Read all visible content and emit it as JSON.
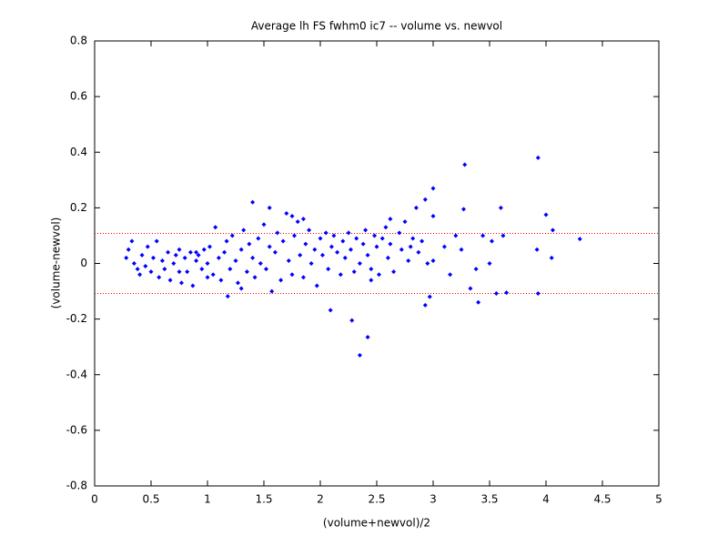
{
  "chart_data": {
    "type": "scatter",
    "title": "Average lh FS fwhm0 ic7 -- volume vs. newvol",
    "x_label": "(volume+newvol)/2",
    "y_label": "(volume-newvol)",
    "color": "#0000ff",
    "xlim": [
      0,
      5
    ],
    "xticks": [
      0,
      0.5,
      1,
      1.5,
      2,
      2.5,
      3,
      3.5,
      4,
      4.5,
      5
    ],
    "ylim": [
      -0.8,
      0.8
    ],
    "yticks": [
      -0.8,
      -0.6,
      -0.4,
      -0.2,
      0,
      0.2,
      0.4,
      0.6,
      0.8
    ],
    "reference_lines": [
      0.108,
      -0.108
    ],
    "reference_color": "#ff0000",
    "x": [
      3.28,
      3.93,
      2.35,
      2.42,
      2.28,
      2.09,
      3.0,
      2.93,
      3.27,
      3.6,
      4.0,
      4.06,
      4.3,
      3.92,
      4.05,
      3.93,
      3.65,
      3.56,
      3.4,
      3.33,
      2.93,
      2.97,
      1.18,
      3.0,
      2.85,
      2.62,
      3.44,
      3.52,
      3.62,
      3.1,
      3.2,
      3.25,
      2.95,
      3.0,
      3.15,
      3.38,
      3.5,
      2.8,
      0.28,
      0.3,
      0.33,
      0.35,
      0.38,
      0.4,
      0.42,
      0.45,
      0.47,
      0.5,
      0.52,
      0.55,
      0.57,
      0.6,
      0.62,
      0.65,
      0.67,
      0.7,
      0.72,
      0.75,
      0.77,
      0.8,
      0.82,
      0.85,
      0.87,
      0.9,
      0.92,
      0.95,
      0.97,
      1.0,
      1.02,
      1.05,
      1.07,
      1.1,
      1.12,
      1.15,
      1.17,
      1.2,
      1.22,
      1.25,
      1.27,
      1.3,
      1.32,
      1.35,
      1.37,
      1.4,
      1.42,
      1.45,
      1.47,
      1.5,
      1.52,
      1.55,
      1.57,
      1.6,
      1.62,
      1.65,
      1.67,
      1.7,
      1.72,
      1.75,
      1.77,
      1.8,
      1.82,
      1.85,
      1.87,
      1.9,
      1.92,
      1.95,
      1.97,
      2.0,
      2.02,
      2.05,
      2.07,
      2.1,
      2.12,
      2.15,
      2.18,
      2.2,
      2.22,
      2.25,
      2.27,
      2.3,
      2.32,
      2.35,
      2.38,
      2.4,
      2.42,
      2.45,
      2.48,
      2.5,
      2.52,
      2.55,
      2.58,
      2.6,
      2.62,
      2.65,
      2.7,
      2.72,
      2.75,
      2.78,
      2.82,
      2.87,
      2.9,
      1.4,
      1.55,
      1.75,
      2.45,
      0.75,
      1.0,
      0.9,
      1.3,
      1.85
    ],
    "y": [
      0.355,
      0.38,
      -0.33,
      -0.265,
      -0.205,
      -0.168,
      0.27,
      0.23,
      0.195,
      0.2,
      0.175,
      0.12,
      0.088,
      0.05,
      0.02,
      -0.108,
      -0.105,
      -0.108,
      -0.14,
      -0.09,
      -0.15,
      -0.12,
      -0.118,
      0.17,
      0.2,
      0.16,
      0.1,
      0.08,
      0.1,
      0.06,
      0.1,
      0.05,
      0.0,
      0.01,
      -0.04,
      -0.02,
      0.0,
      0.06,
      0.02,
      0.05,
      0.08,
      0.0,
      -0.02,
      -0.04,
      0.03,
      -0.01,
      0.06,
      -0.03,
      0.02,
      0.08,
      -0.05,
      0.01,
      -0.02,
      0.04,
      -0.06,
      0.0,
      0.03,
      0.05,
      -0.07,
      0.02,
      -0.03,
      0.04,
      -0.08,
      0.01,
      0.03,
      -0.02,
      0.05,
      0.0,
      0.06,
      -0.04,
      0.13,
      0.02,
      -0.06,
      0.04,
      0.08,
      -0.02,
      0.1,
      0.01,
      -0.07,
      0.05,
      0.12,
      -0.03,
      0.07,
      0.02,
      -0.05,
      0.09,
      0.0,
      0.14,
      -0.02,
      0.06,
      -0.1,
      0.04,
      0.11,
      -0.06,
      0.08,
      0.18,
      0.01,
      -0.04,
      0.1,
      0.15,
      0.03,
      -0.05,
      0.07,
      0.12,
      0.0,
      0.05,
      -0.08,
      0.09,
      0.03,
      0.11,
      -0.02,
      0.06,
      0.1,
      0.04,
      -0.04,
      0.08,
      0.02,
      0.11,
      0.05,
      -0.03,
      0.09,
      0.0,
      0.07,
      0.12,
      0.03,
      -0.02,
      0.1,
      0.06,
      -0.04,
      0.09,
      0.13,
      0.02,
      0.07,
      -0.03,
      0.11,
      0.05,
      0.15,
      0.01,
      0.09,
      0.04,
      0.08,
      0.22,
      0.2,
      0.17,
      -0.06,
      -0.03,
      -0.05,
      0.04,
      -0.09,
      0.16
    ]
  }
}
